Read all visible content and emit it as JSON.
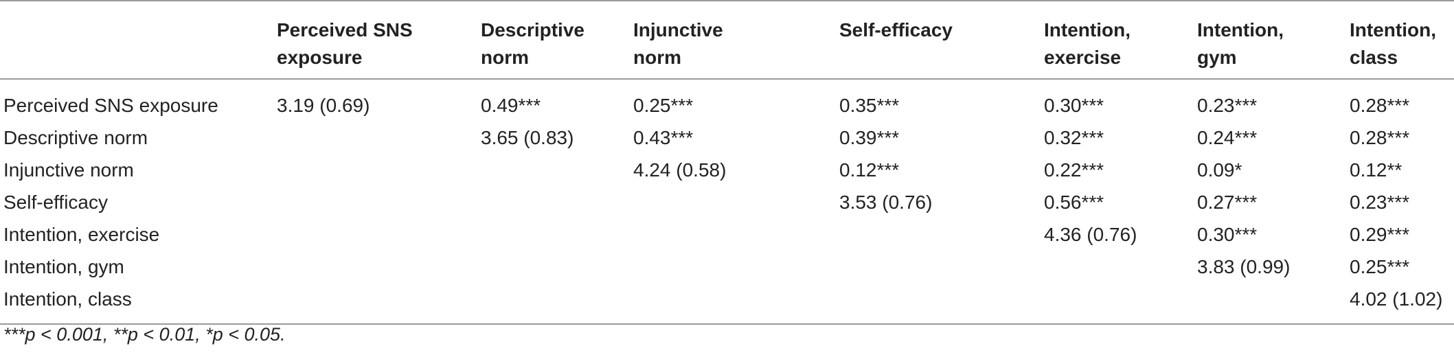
{
  "table": {
    "columns": [
      "",
      "Perceived SNS exposure",
      "Descriptive norm",
      "Injunctive norm",
      "Self-efficacy",
      "Intention, exercise",
      "Intention, gym",
      "Intention, class"
    ],
    "column_lines": [
      [
        "",
        ""
      ],
      [
        "Perceived SNS",
        "exposure"
      ],
      [
        "Descriptive",
        "norm"
      ],
      [
        "Injunctive",
        "norm"
      ],
      [
        "Self-efficacy",
        ""
      ],
      [
        "Intention,",
        "exercise"
      ],
      [
        "Intention,",
        "gym"
      ],
      [
        "Intention,",
        "class"
      ]
    ],
    "rows": [
      [
        "Perceived SNS exposure",
        "3.19 (0.69)",
        "0.49***",
        "0.25***",
        "0.35***",
        "0.30***",
        "0.23***",
        "0.28***"
      ],
      [
        "Descriptive norm",
        "",
        "3.65 (0.83)",
        "0.43***",
        "0.39***",
        "0.32***",
        "0.24***",
        "0.28***"
      ],
      [
        "Injunctive norm",
        "",
        "",
        "4.24 (0.58)",
        "0.12***",
        "0.22***",
        "0.09*",
        "0.12**"
      ],
      [
        "Self-efficacy",
        "",
        "",
        "",
        "3.53 (0.76)",
        "0.56***",
        "0.27***",
        "0.23***"
      ],
      [
        "Intention, exercise",
        "",
        "",
        "",
        "",
        "4.36 (0.76)",
        "0.30***",
        "0.29***"
      ],
      [
        "Intention, gym",
        "",
        "",
        "",
        "",
        "",
        "3.83 (0.99)",
        "0.25***"
      ],
      [
        "Intention, class",
        "",
        "",
        "",
        "",
        "",
        "",
        "4.02 (1.02)"
      ]
    ]
  },
  "footnote": "***p < 0.001, **p < 0.01, *p < 0.05."
}
